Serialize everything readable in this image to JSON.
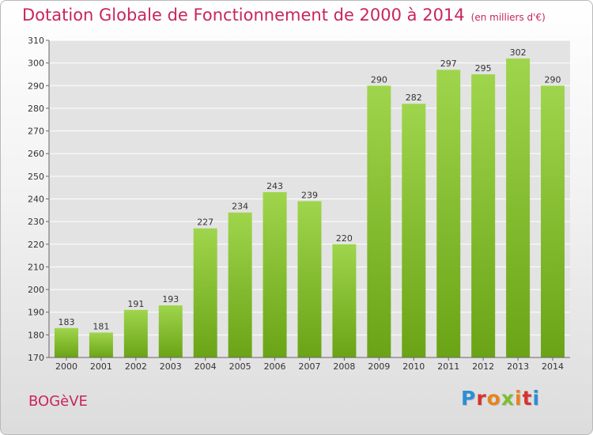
{
  "header": {
    "title": "Dotation Globale de Fonctionnement de 2000 à 2014",
    "unit": "(en milliers d'€)"
  },
  "footer": {
    "place": "BOGèVE",
    "logo": "Proxiti"
  },
  "colors": {
    "bar_top": "#9fd54c",
    "bar_bottom": "#6aa416",
    "title": "#c8255e",
    "grid": "#ffffff"
  },
  "chart_data": {
    "type": "bar",
    "title": "Dotation Globale de Fonctionnement de 2000 à 2014",
    "subtitle": "(en milliers d'€)",
    "categories": [
      "2000",
      "2001",
      "2002",
      "2003",
      "2004",
      "2005",
      "2006",
      "2007",
      "2008",
      "2009",
      "2010",
      "2011",
      "2012",
      "2013",
      "2014"
    ],
    "values": [
      183,
      181,
      191,
      193,
      227,
      234,
      243,
      239,
      220,
      290,
      282,
      297,
      295,
      302,
      290
    ],
    "data_labels": [
      "183",
      "181",
      "191",
      "193",
      "227",
      "234",
      "243",
      "239",
      "220",
      "290",
      "282",
      "297",
      "295",
      "302",
      "290"
    ],
    "ylim": [
      170,
      310
    ],
    "yticks": [
      "170",
      "180",
      "190",
      "200",
      "210",
      "220",
      "230",
      "240",
      "250",
      "260",
      "270",
      "280",
      "290",
      "300",
      "310"
    ],
    "grid": true,
    "legend": "none"
  }
}
